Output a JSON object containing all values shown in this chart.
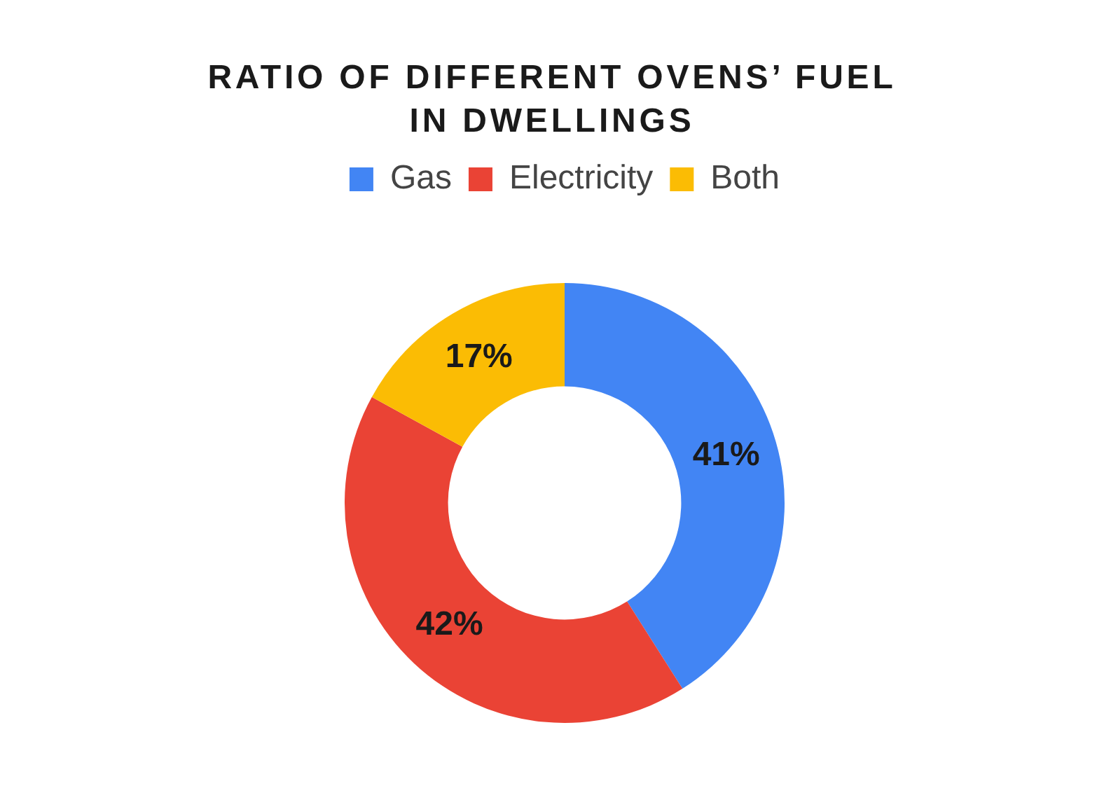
{
  "chart_data": {
    "type": "donut",
    "title": "RATIO OF DIFFERENT OVENS’ FUEL IN DWELLINGS",
    "categories": [
      "Gas",
      "Electricity",
      "Both"
    ],
    "values": [
      41,
      42,
      17
    ],
    "colors": [
      "#4285f4",
      "#ea4335",
      "#fbbc04"
    ],
    "value_labels": [
      "41%",
      "42%",
      "17%"
    ],
    "legend": "top"
  }
}
